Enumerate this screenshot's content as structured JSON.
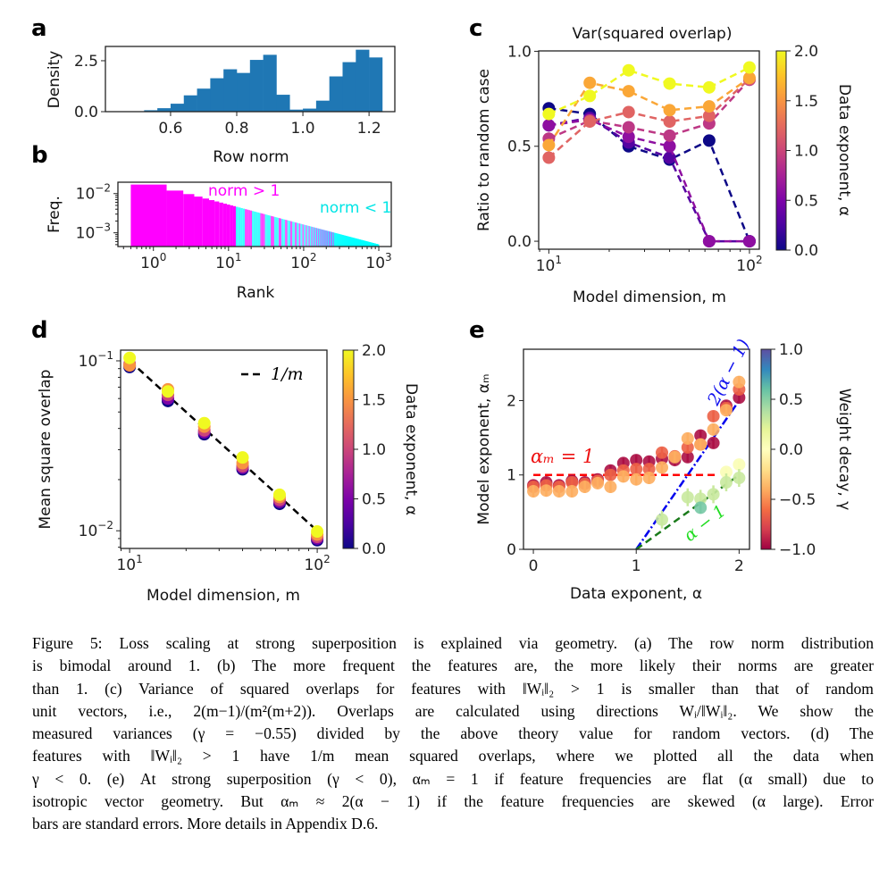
{
  "figure": {
    "caption_lines": [
      "Figure 5: Loss scaling at strong superposition is explained via geometry. (a) The row norm distribution",
      "is bimodal around 1. (b) The more frequent the features are, the more likely their norms are greater",
      "than 1. (c) Variance of squared overlaps for features with ‖Wᵢ‖₂ > 1 is smaller than that of random",
      "unit vectors, i.e., 2(m−1)/(m²(m+2)). Overlaps are calculated using directions Wᵢ/‖Wᵢ‖₂. We show the",
      "measured variances (γ = −0.55) divided by the above theory value for random vectors. (d) The",
      "features with ‖Wᵢ‖₂ > 1 have 1/m mean squared overlaps, where we plotted all the data when",
      "γ < 0. (e) At strong superposition (γ < 0), αₘ = 1 if feature frequencies are flat (α small) due to",
      "isotropic vector geometry. But αₘ ≈ 2(α − 1) if the feature frequencies are skewed (α large). Error",
      "bars are standard errors. More details in Appendix D.6."
    ]
  },
  "chart_data": [
    {
      "panel": "a",
      "type": "bar",
      "title": "",
      "xlabel": "Row norm",
      "ylabel": "Density",
      "bin_start": 0.52,
      "bin_width": 0.04,
      "values": [
        0.07,
        0.17,
        0.39,
        0.8,
        1.13,
        1.64,
        2.08,
        1.9,
        2.54,
        2.79,
        0.83,
        0.1,
        0.15,
        0.54,
        1.73,
        2.43,
        3.04,
        2.66
      ],
      "xlim": [
        0.403,
        1.278
      ],
      "ylim": [
        0,
        3.2
      ],
      "xticks": [
        0.6,
        0.8,
        1.0,
        1.2
      ],
      "xticklabels": [
        "0.6",
        "0.8",
        "1.0",
        "1.2"
      ],
      "yticks": [
        0,
        2.5
      ],
      "yticklabels": [
        "0.0",
        "2.5"
      ],
      "color": "#1f77b4"
    },
    {
      "panel": "b",
      "type": "bar",
      "title": "",
      "xlabel": "Rank",
      "ylabel": "Freq.",
      "xscale": "log",
      "yscale": "log",
      "freq_power_law": {
        "amplitude": 0.017,
        "exponent": -0.51,
        "rank_min": 1,
        "rank_max": 1000
      },
      "all_norm_gt1_until_rank": 12,
      "all_norm_lt1_after_rank": 250,
      "xlim": [
        0.337,
        1466
      ],
      "ylim": [
        0.000447,
        0.0195
      ],
      "xticks": [
        1,
        10,
        100,
        1000
      ],
      "xticklabels": [
        "10^0",
        "10^1",
        "10^2",
        "10^3"
      ],
      "yticks": [
        0.01,
        0.001
      ],
      "yticklabels": [
        "10^-2",
        "10^-3"
      ],
      "annotations": [
        {
          "text": "norm > 1",
          "color": "#ff00ff"
        },
        {
          "text": "norm < 1",
          "color": "#00ffff"
        }
      ]
    },
    {
      "panel": "c",
      "type": "line",
      "title": "Var(squared overlap)",
      "xlabel": "Model dimension, m",
      "ylabel": "Ratio to random case",
      "xscale": "log",
      "x": [
        10,
        16,
        25,
        40,
        63,
        100
      ],
      "series": [
        {
          "alpha": 0.0,
          "values": [
            0.7,
            0.67,
            0.5,
            0.43,
            0.53,
            0.0
          ]
        },
        {
          "alpha": 0.3,
          "values": [
            0.61,
            0.65,
            0.52,
            0.44,
            0.0,
            0.0
          ]
        },
        {
          "alpha": 0.6,
          "values": [
            0.61,
            0.64,
            0.55,
            0.5,
            0.0,
            0.0
          ]
        },
        {
          "alpha": 0.9,
          "values": [
            0.54,
            0.635,
            0.6,
            0.556,
            0.62,
            0.85
          ]
        },
        {
          "alpha": 1.2,
          "values": [
            0.44,
            0.63,
            0.68,
            0.63,
            0.66,
            0.855
          ]
        },
        {
          "alpha": 1.6,
          "values": [
            0.506,
            0.834,
            0.79,
            0.69,
            0.71,
            0.86
          ]
        },
        {
          "alpha": 2.0,
          "values": [
            0.67,
            0.765,
            0.9,
            0.83,
            0.81,
            0.915
          ]
        }
      ],
      "xlim": [
        8.9,
        112
      ],
      "ylim": [
        -0.042,
        1.002
      ],
      "xticks": [
        10,
        100
      ],
      "xticklabels": [
        "10^1",
        "10^2"
      ],
      "yticks": [
        0,
        0.5,
        1.0
      ],
      "yticklabels": [
        "0.0",
        "0.5",
        "1.0"
      ],
      "colorbar": {
        "label": "Data exponent, α",
        "range": [
          0,
          2
        ],
        "ticks": [
          "0.0",
          "0.5",
          "1.0",
          "1.5",
          "2.0"
        ],
        "colormap": "plasma"
      }
    },
    {
      "panel": "d",
      "type": "scatter",
      "title": "",
      "xlabel": "Model dimension, m",
      "ylabel": "Mean square overlap",
      "xscale": "log",
      "yscale": "log",
      "x": [
        10,
        16,
        25,
        40,
        63,
        100
      ],
      "series": [
        {
          "alpha": 0.0,
          "values": [
            0.092,
            0.058,
            0.037,
            0.023,
            0.0144,
            0.0088
          ]
        },
        {
          "alpha": 0.5,
          "values": [
            0.094,
            0.06,
            0.038,
            0.0235,
            0.0148,
            0.009
          ]
        },
        {
          "alpha": 1.0,
          "values": [
            0.096,
            0.063,
            0.039,
            0.024,
            0.0152,
            0.0092
          ]
        },
        {
          "alpha": 1.5,
          "values": [
            0.094,
            0.068,
            0.041,
            0.025,
            0.0158,
            0.0095
          ]
        },
        {
          "alpha": 2.0,
          "values": [
            0.104,
            0.066,
            0.043,
            0.027,
            0.0163,
            0.0099
          ]
        }
      ],
      "reference_line": {
        "label": "1/m",
        "function": "1/m"
      },
      "xlim": [
        8.95,
        112.7
      ],
      "ylim": [
        0.00787,
        0.1156
      ],
      "xticks": [
        10,
        100
      ],
      "xticklabels": [
        "10^1",
        "10^2"
      ],
      "yticks": [
        0.1,
        0.01
      ],
      "yticklabels": [
        "10^-1",
        "10^-2"
      ],
      "colorbar": {
        "label": "Data exponent, α",
        "range": [
          0,
          2
        ],
        "ticks": [
          "0.0",
          "0.5",
          "1.0",
          "1.5",
          "2.0"
        ],
        "colormap": "plasma"
      }
    },
    {
      "panel": "e",
      "type": "scatter",
      "title": "",
      "xlabel": "Data exponent, α",
      "ylabel": "Model exponent, αₘ",
      "series": [
        {
          "gamma": -0.95,
          "x": [
            0,
            0.125,
            0.25,
            0.375,
            0.5,
            0.625,
            0.75,
            0.875,
            1,
            1.125,
            1.25,
            1.375,
            1.5,
            1.625,
            1.75,
            1.875,
            2
          ],
          "values": [
            0.86,
            0.9,
            0.86,
            0.92,
            0.9,
            0.94,
            1.06,
            1.16,
            1.2,
            1.18,
            1.22,
            1.2,
            1.24,
            1.53,
            1.43,
            1.93,
            2.04
          ],
          "err": 0.07
        },
        {
          "gamma": -0.65,
          "x": [
            0,
            0.125,
            0.25,
            0.375,
            0.5,
            0.625,
            0.75,
            0.875,
            1,
            1.125,
            1.25,
            1.375,
            1.5,
            1.625,
            1.75,
            1.875,
            2
          ],
          "values": [
            0.84,
            0.86,
            0.84,
            0.9,
            0.88,
            0.92,
            1.0,
            1.06,
            1.08,
            1.08,
            1.3,
            1.25,
            1.37,
            1.41,
            1.79,
            1.9,
            2.15
          ],
          "err": 0.07
        },
        {
          "gamma": -0.4,
          "x": [
            0,
            0.125,
            0.25,
            0.375,
            0.5,
            0.625,
            0.75,
            0.875,
            1,
            1.125,
            1.25,
            1.375,
            1.5,
            1.625,
            1.75,
            1.875,
            2
          ],
          "values": [
            0.78,
            0.79,
            0.78,
            0.78,
            0.84,
            0.89,
            0.84,
            0.98,
            0.94,
            0.96,
            1.1,
            1.24,
            1.49,
            1.41,
            1.61,
            1.87,
            2.25
          ],
          "err": 0.08
        },
        {
          "gamma": 0.05,
          "x": [
            1.875,
            2
          ],
          "values": [
            1.04,
            1.14
          ],
          "err": 0.05
        },
        {
          "gamma": 0.3,
          "x": [
            1.25,
            1.5,
            1.625,
            1.75,
            1.875,
            2
          ],
          "values": [
            0.4,
            0.7,
            0.68,
            0.74,
            0.9,
            0.96
          ],
          "err": 0.12
        },
        {
          "gamma": 0.55,
          "x": [
            1.625
          ],
          "values": [
            0.56
          ],
          "err": 0.08
        }
      ],
      "reference_lines": [
        {
          "label": "αₘ = 1",
          "function": "1",
          "x_range": [
            0,
            1.8
          ],
          "color": "#ff0000",
          "style": "dashed"
        },
        {
          "label": "2(α − 1)",
          "function": "2(α-1)",
          "x_range": [
            1,
            2
          ],
          "color": "#0000ee",
          "style": "dashdot"
        },
        {
          "label": "α − 1",
          "function": "α-1",
          "x_range": [
            1,
            2
          ],
          "color": "#1a7a1a",
          "style": "dashed",
          "label_color": "#22dd22"
        }
      ],
      "xlim": [
        -0.096,
        2.101
      ],
      "ylim": [
        0,
        2.69
      ],
      "xticks": [
        0,
        1,
        2
      ],
      "xticklabels": [
        "0",
        "1",
        "2"
      ],
      "yticks": [
        0,
        1,
        2
      ],
      "yticklabels": [
        "0",
        "1",
        "2"
      ],
      "colorbar": {
        "label": "Weight decay, γ",
        "range": [
          -1,
          1
        ],
        "ticks": [
          "−1.0",
          "−0.5",
          "0.0",
          "0.5",
          "1.0"
        ],
        "colormap": "Spectral"
      }
    }
  ],
  "panel_letters": [
    "a",
    "b",
    "c",
    "d",
    "e"
  ]
}
